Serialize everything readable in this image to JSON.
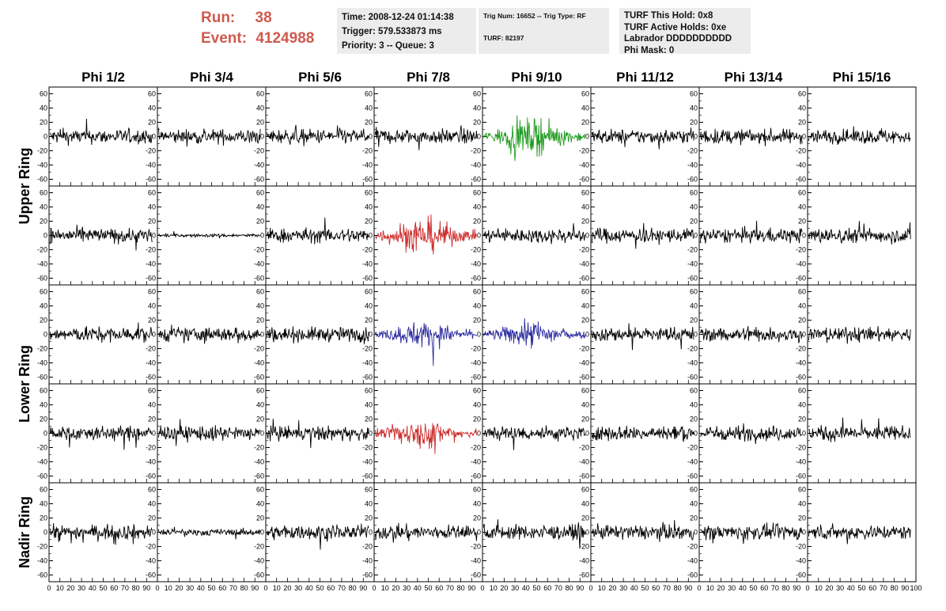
{
  "header": {
    "run_label": "Run:",
    "run_value": "38",
    "event_label": "Event:",
    "event_value": "4124988",
    "run_color": "#cf5a4d"
  },
  "info_boxes": {
    "box1": [
      "Time: 2008-12-24 01:14:38",
      "Trigger: 579.533873 ms",
      "Priority: 3 -- Queue: 3"
    ],
    "box2": [
      "Trig Num: 16652 -- Trig Type: RF",
      "TURF: 82197"
    ],
    "box3": [
      "TURF This Hold: 0x8",
      "TURF Active Holds: 0xe",
      "Labrador DDDDDDDDDD",
      "Phi Mask: 0"
    ]
  },
  "chart_data": {
    "type": "line",
    "title": "",
    "columns": [
      "Phi 1/2",
      "Phi 3/4",
      "Phi 5/6",
      "Phi 7/8",
      "Phi 9/10",
      "Phi 11/12",
      "Phi 13/14",
      "Phi 15/16"
    ],
    "row_groups": [
      {
        "label": "Upper Ring",
        "rows": [
          0,
          1
        ]
      },
      {
        "label": "Lower Ring",
        "rows": [
          2,
          3
        ]
      },
      {
        "label": "Nadir Ring",
        "rows": [
          4
        ]
      }
    ],
    "xlim": [
      0,
      100
    ],
    "ylim": [
      -65,
      65
    ],
    "x_ticks": [
      0,
      10,
      20,
      30,
      40,
      50,
      60,
      70,
      80,
      90,
      100
    ],
    "x_tick_labels": [
      "0",
      "10",
      "20",
      "30",
      "40",
      "50",
      "60",
      "70",
      "80",
      "90",
      "100"
    ],
    "y_ticks": [
      -60,
      -40,
      -20,
      0,
      20,
      40,
      60
    ],
    "y_tick_labels": [
      "-60",
      "-40",
      "-20",
      "0",
      "20",
      "40",
      "60"
    ],
    "highlight_colors": {
      "green": "#1e9a1e",
      "red": "#cc2a2a",
      "blue": "#2b2ba0",
      "default": "#000000"
    },
    "panels": [
      {
        "row": 0,
        "col": 4,
        "color": "green",
        "amplitude": 26,
        "pulse": true
      },
      {
        "row": 1,
        "col": 1,
        "color": "default",
        "amplitude": 3,
        "pulse": false
      },
      {
        "row": 1,
        "col": 3,
        "color": "red",
        "amplitude": 28,
        "pulse": true
      },
      {
        "row": 2,
        "col": 3,
        "color": "blue",
        "amplitude": 20,
        "pulse": true
      },
      {
        "row": 2,
        "col": 4,
        "color": "blue",
        "amplitude": 20,
        "pulse": true
      },
      {
        "row": 3,
        "col": 3,
        "color": "red",
        "amplitude": 22,
        "pulse": true
      },
      {
        "row": 4,
        "col": 1,
        "color": "default",
        "amplitude": 6,
        "pulse": false
      }
    ],
    "default_amplitude": 13,
    "samples_per_trace": 180
  }
}
